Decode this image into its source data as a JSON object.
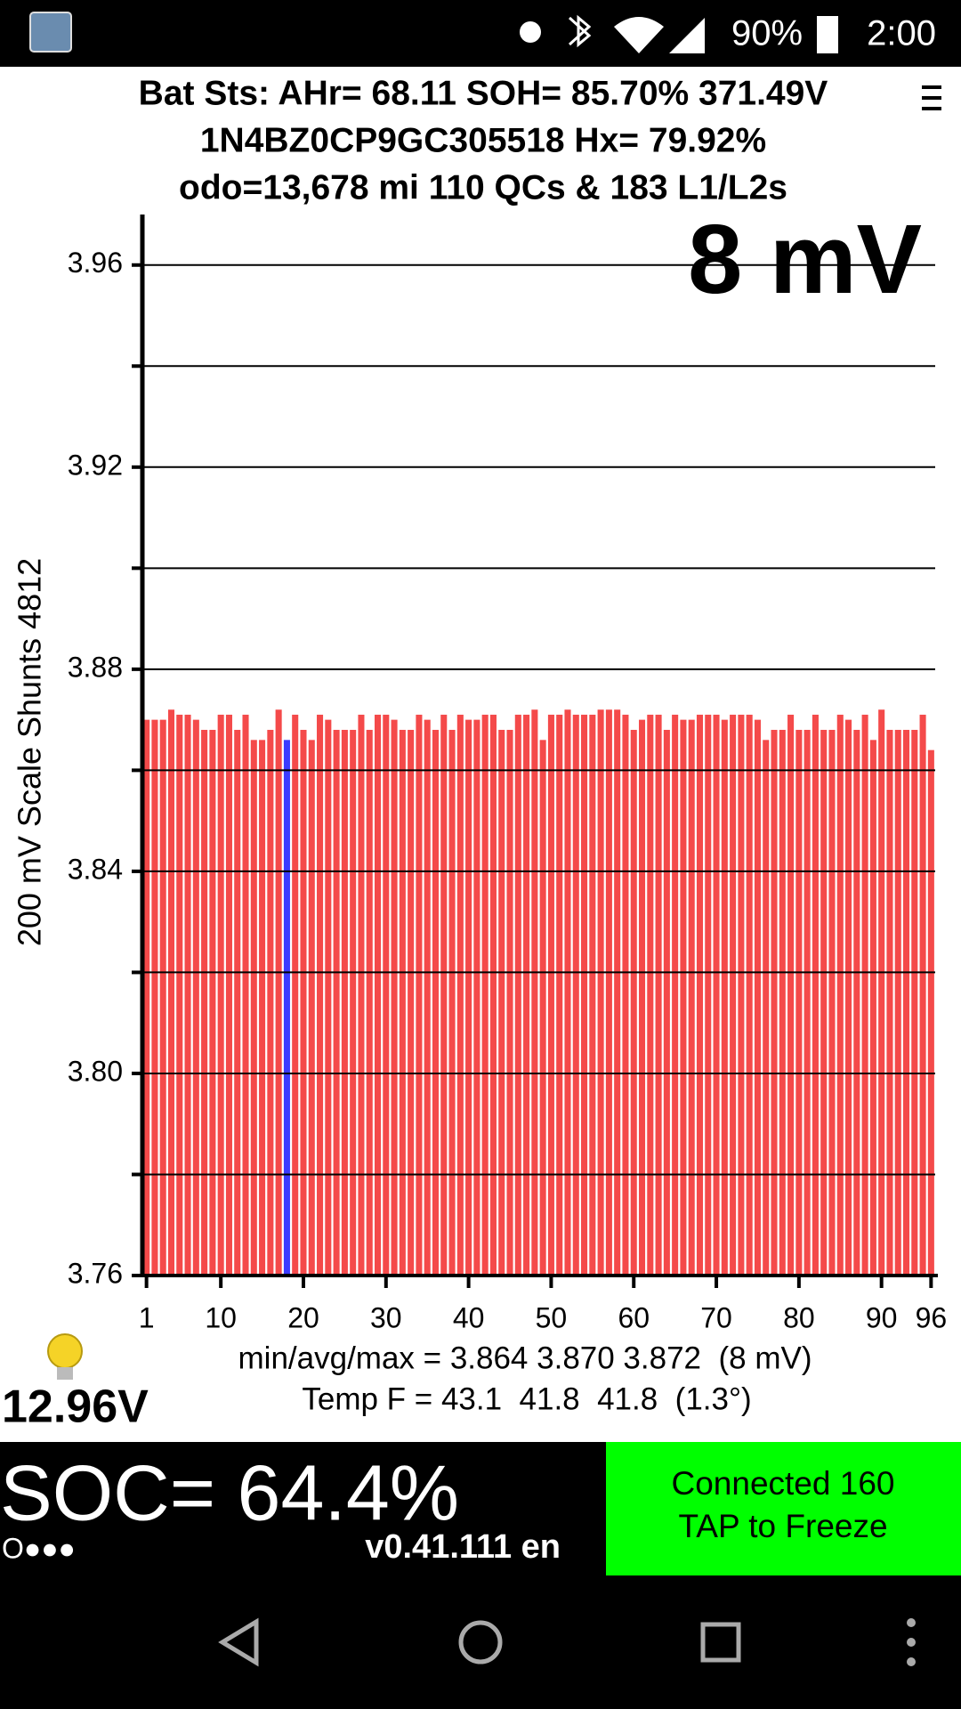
{
  "status_bar": {
    "battery": "90%",
    "time": "2:00"
  },
  "header": {
    "lines": [
      "Bat Sts: AHr= 68.11 SOH= 85.70% 371.49V",
      "1N4BZ0CP9GC305518   Hx= 79.92%",
      "odo=13,678 mi 110 QCs & 183 L1/L2s"
    ]
  },
  "chart_data": {
    "type": "bar",
    "big_label": "8 mV",
    "y_label": "200 mV Scale   Shunts 4812",
    "x": [
      1,
      2,
      3,
      4,
      5,
      6,
      7,
      8,
      9,
      10,
      11,
      12,
      13,
      14,
      15,
      16,
      17,
      18,
      19,
      20,
      21,
      22,
      23,
      24,
      25,
      26,
      27,
      28,
      29,
      30,
      31,
      32,
      33,
      34,
      35,
      36,
      37,
      38,
      39,
      40,
      41,
      42,
      43,
      44,
      45,
      46,
      47,
      48,
      49,
      50,
      51,
      52,
      53,
      54,
      55,
      56,
      57,
      58,
      59,
      60,
      61,
      62,
      63,
      64,
      65,
      66,
      67,
      68,
      69,
      70,
      71,
      72,
      73,
      74,
      75,
      76,
      77,
      78,
      79,
      80,
      81,
      82,
      83,
      84,
      85,
      86,
      87,
      88,
      89,
      90,
      91,
      92,
      93,
      94,
      95,
      96
    ],
    "values": [
      3.87,
      3.87,
      3.87,
      3.872,
      3.871,
      3.871,
      3.87,
      3.868,
      3.868,
      3.871,
      3.871,
      3.868,
      3.871,
      3.866,
      3.866,
      3.868,
      3.872,
      3.866,
      3.871,
      3.868,
      3.866,
      3.871,
      3.87,
      3.868,
      3.868,
      3.868,
      3.871,
      3.868,
      3.871,
      3.871,
      3.87,
      3.868,
      3.868,
      3.871,
      3.87,
      3.868,
      3.871,
      3.868,
      3.871,
      3.87,
      3.87,
      3.871,
      3.871,
      3.868,
      3.868,
      3.871,
      3.871,
      3.872,
      3.866,
      3.871,
      3.871,
      3.872,
      3.871,
      3.871,
      3.871,
      3.872,
      3.872,
      3.872,
      3.871,
      3.868,
      3.87,
      3.871,
      3.871,
      3.868,
      3.871,
      3.87,
      3.87,
      3.871,
      3.871,
      3.871,
      3.87,
      3.871,
      3.871,
      3.871,
      3.87,
      3.866,
      3.868,
      3.868,
      3.871,
      3.868,
      3.868,
      3.871,
      3.868,
      3.868,
      3.871,
      3.87,
      3.868,
      3.871,
      3.866,
      3.872,
      3.868,
      3.868,
      3.868,
      3.868,
      3.871,
      3.864
    ],
    "color": "#f44a4a",
    "highlight": {
      "index": 17,
      "color": "#3b3bff"
    },
    "xlim": [
      0.5,
      96.5
    ],
    "xticks": [
      1,
      10,
      20,
      30,
      40,
      50,
      60,
      70,
      80,
      90,
      96
    ],
    "ylim": [
      3.76,
      3.97
    ],
    "yticks": [
      3.76,
      {
        "value": 3.8,
        "label": "3.80"
      },
      3.84,
      3.88,
      3.92,
      3.96
    ],
    "ygrid_minor": [
      3.78,
      3.82,
      3.86,
      3.9,
      3.94
    ],
    "grid": true,
    "stats": [
      "min/avg/max = 3.864 3.870 3.872  (8 mV)",
      "Temp F = 43.1  41.8  41.8  (1.3°)"
    ]
  },
  "aux_voltage": "12.96V",
  "soc": "SOC= 64.4%",
  "dots": "O●●●",
  "version": "v0.41.111 en",
  "connect_button": {
    "lines": [
      "Connected 160",
      "TAP to Freeze"
    ]
  }
}
